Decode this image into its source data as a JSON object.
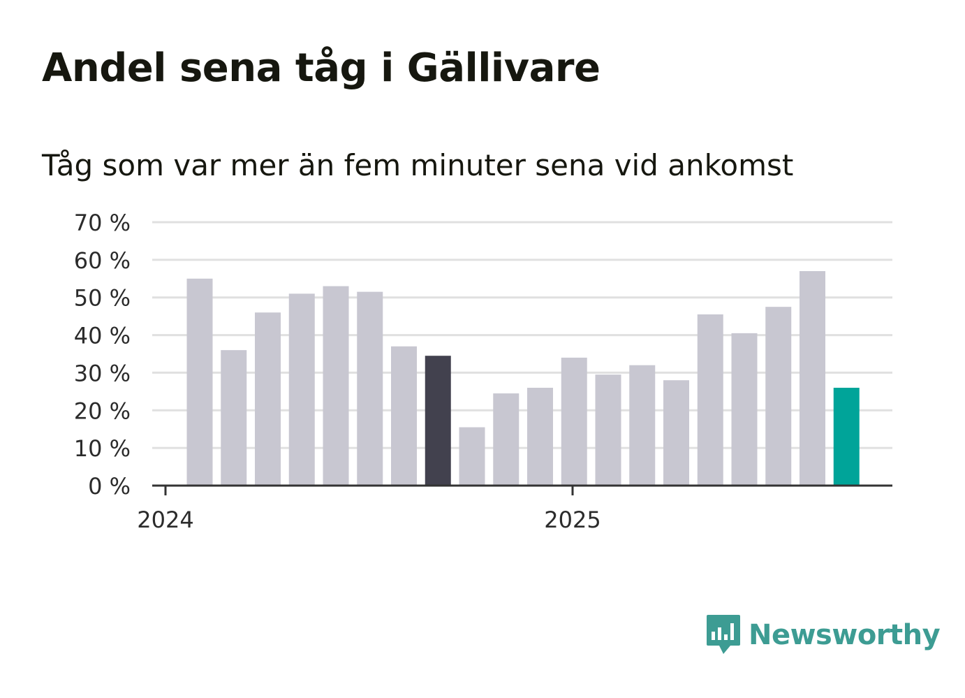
{
  "title": "Andel sena tåg i Gällivare",
  "subtitle": "Tåg som var mer än fem minuter sena vid ankomst",
  "brand": {
    "name": "Newsworthy",
    "icon": "newsworthy-logo-icon",
    "color": "#3d9c93"
  },
  "colors": {
    "bar_default": "#c8c7d1",
    "bar_highlight_dark": "#42414e",
    "bar_highlight_current": "#00a499",
    "grid": "#e0e0e0",
    "axis": "#333333",
    "text": "#16170f"
  },
  "chart_data": {
    "type": "bar",
    "title": "Andel sena tåg i Gällivare",
    "subtitle": "Tåg som var mer än fem minuter sena vid ankomst",
    "xlabel": "",
    "ylabel": "",
    "ylim": [
      0,
      70
    ],
    "yticks": [
      0,
      10,
      20,
      30,
      40,
      50,
      60,
      70
    ],
    "ytick_labels": [
      "0 %",
      "10 %",
      "20 %",
      "30 %",
      "40 %",
      "50 %",
      "60 %",
      "70 %"
    ],
    "x_tick_labels": [
      "2024",
      "2025"
    ],
    "categories": [
      "2024-01",
      "2024-02",
      "2024-03",
      "2024-04",
      "2024-05",
      "2024-06",
      "2024-07",
      "2024-08",
      "2024-09",
      "2024-10",
      "2024-11",
      "2024-12",
      "2025-01",
      "2025-02",
      "2025-03",
      "2025-04",
      "2025-05",
      "2025-06",
      "2025-07",
      "2025-08"
    ],
    "values": [
      55,
      36,
      46,
      51,
      53,
      51.5,
      37,
      34.5,
      15.5,
      24.5,
      26,
      34,
      29.5,
      32,
      28,
      45.5,
      40.5,
      47.5,
      57,
      26
    ],
    "highlight": {
      "2024-08": "bar_highlight_dark",
      "2025-08": "bar_highlight_current"
    },
    "grid": true,
    "legend": "none"
  }
}
